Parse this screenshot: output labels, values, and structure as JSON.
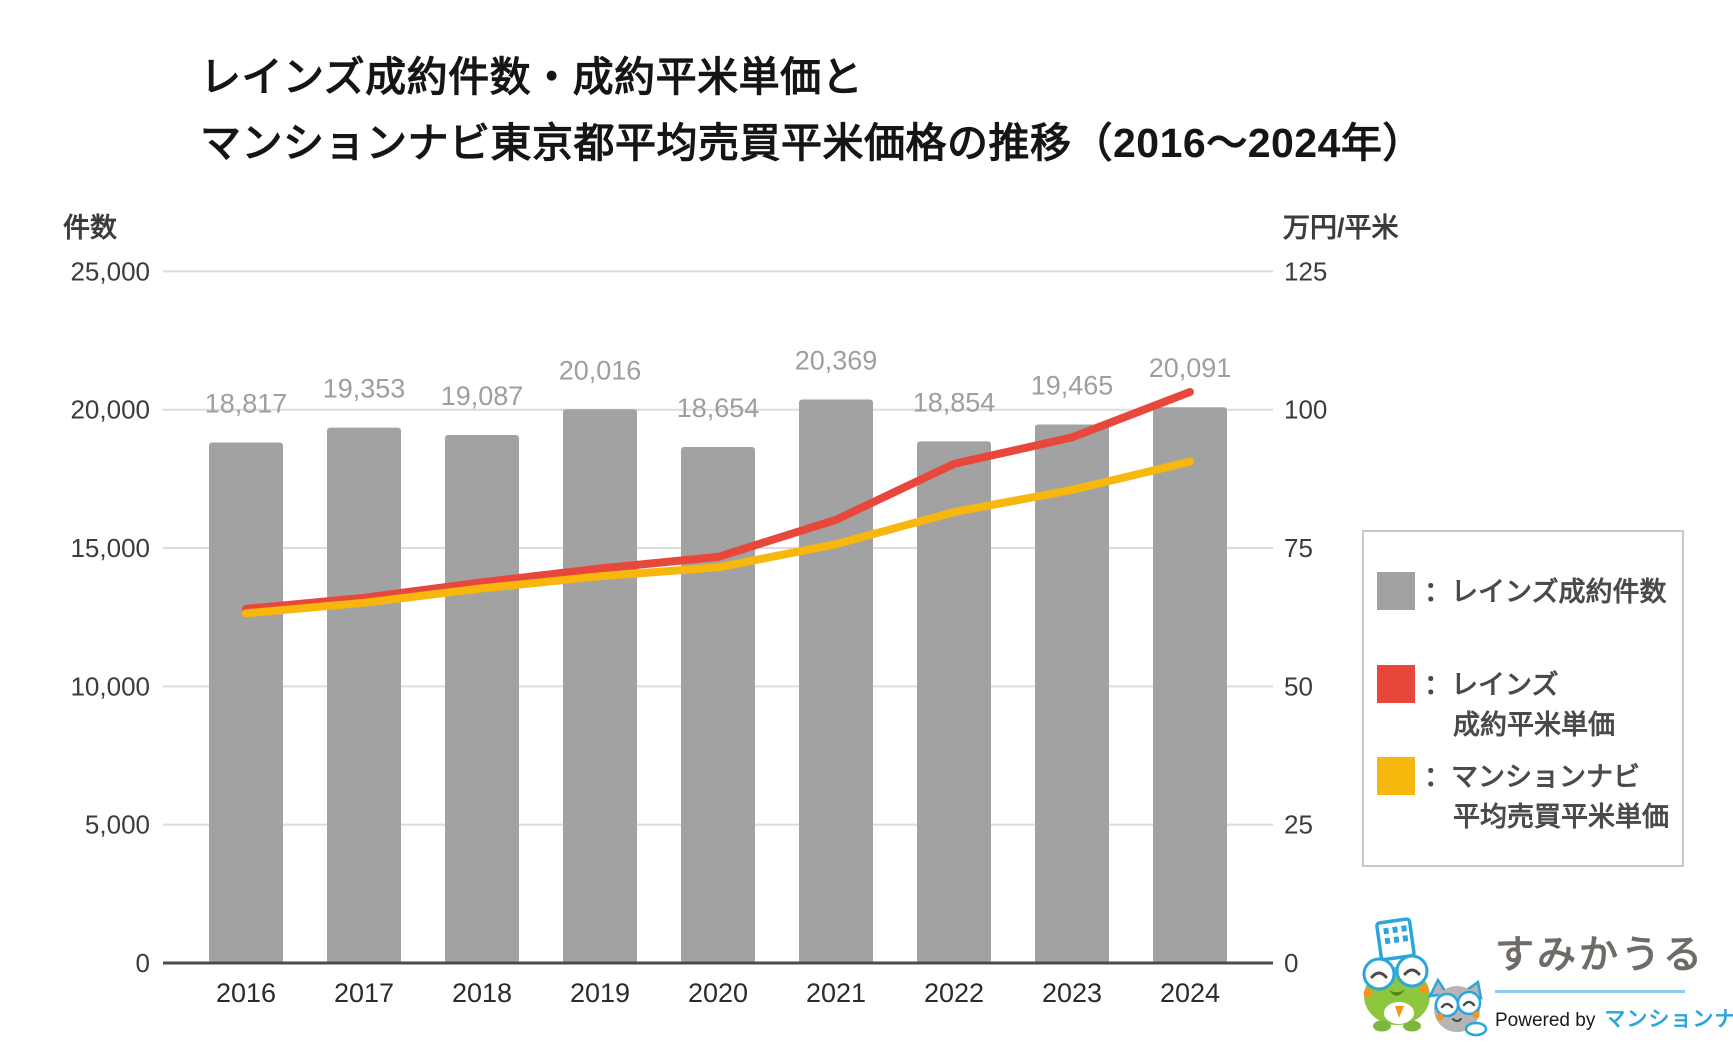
{
  "title": {
    "line1": "レインズ成約件数・成約平米単価と",
    "line2": "マンションナビ東京都平均売買平米価格の推移（2016〜2024年）"
  },
  "chart_data": {
    "type": "bar+line combo",
    "categories": [
      "2016",
      "2017",
      "2018",
      "2019",
      "2020",
      "2021",
      "2022",
      "2023",
      "2024"
    ],
    "series": [
      {
        "name": "レインズ成約件数",
        "type": "bar",
        "axis": "left",
        "color": "#A2A2A2",
        "values": [
          18817,
          19353,
          19087,
          20016,
          18654,
          20369,
          18854,
          19465,
          20091
        ],
        "labels": [
          "18,817",
          "19,353",
          "19,087",
          "20,016",
          "18,654",
          "20,369",
          "18,854",
          "19,465",
          "20,091"
        ]
      },
      {
        "name": "レインズ成約平米単価",
        "type": "line",
        "axis": "right",
        "color": "#E8483C",
        "values": [
          64.0,
          66.0,
          68.8,
          71.3,
          73.4,
          80.1,
          90.2,
          95.0,
          103.2
        ]
      },
      {
        "name": "マンションナビ平均売買平米単価",
        "type": "line",
        "axis": "right",
        "color": "#F8B70D",
        "values": [
          63.2,
          65.1,
          67.7,
          69.9,
          71.5,
          75.7,
          81.5,
          85.5,
          90.6
        ]
      }
    ],
    "axes": {
      "left": {
        "title": "件数",
        "min": 0,
        "max": 25000,
        "ticks": [
          "0",
          "5,000",
          "10,000",
          "15,000",
          "20,000",
          "25,000"
        ]
      },
      "right": {
        "title": "万円/平米",
        "min": 0,
        "max": 125,
        "ticks": [
          "0",
          "25",
          "50",
          "75",
          "100",
          "125"
        ]
      }
    },
    "grid": true,
    "legend_position": "right",
    "label_color": "#9E9E9E",
    "tick_color": "#3c3c3c",
    "grid_color": "#dcdcdc",
    "baseline_color": "#4a4a4a"
  },
  "legend": {
    "items": [
      {
        "color": "#A2A2A2",
        "lines": [
          "：レインズ成約件数"
        ]
      },
      {
        "color": "#E8483C",
        "lines": [
          "：レインズ",
          "成約平米単価"
        ]
      },
      {
        "color": "#F8B70D",
        "lines": [
          "：マンションナビ",
          "平均売買平米単価"
        ]
      }
    ]
  },
  "logo": {
    "brand": "すみかうる",
    "powered_prefix": "Powered by",
    "powered_brand": "マンションナビ",
    "brand_color": "#6f6b66",
    "accent_blue": "#2aa6de",
    "mascot": "frog-and-cat-characters"
  }
}
